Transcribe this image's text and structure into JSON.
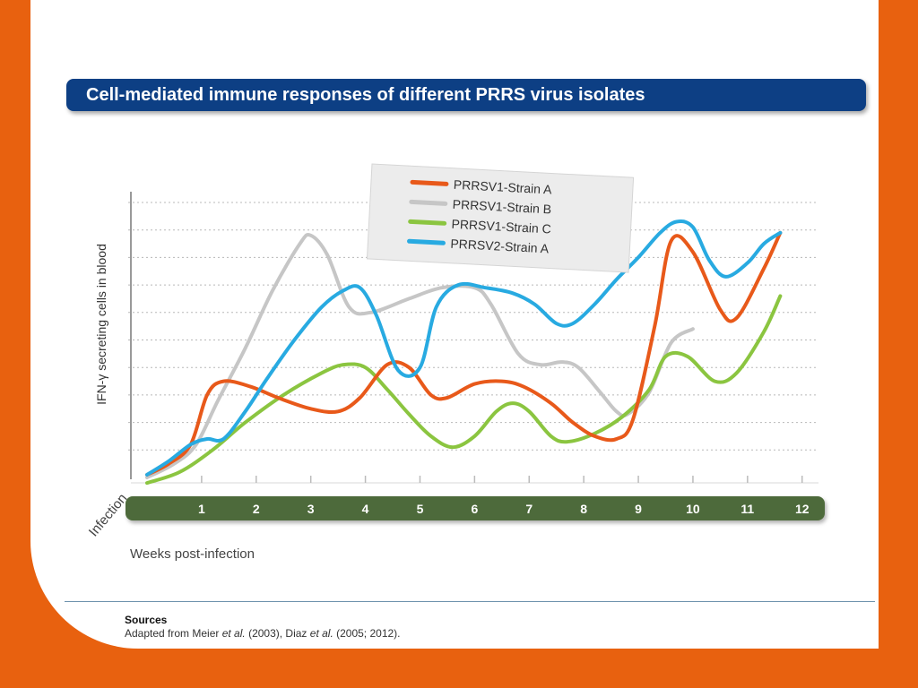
{
  "title": "Cell-mediated immune responses of different PRRS virus isolates",
  "sources": {
    "heading": "Sources",
    "text_parts": [
      "Adapted from Meier ",
      "et al.",
      " (2003), Diaz ",
      "et al.",
      " (2005; 2012)."
    ]
  },
  "colors": {
    "background": "#e8610f",
    "title_bar": "#0d3f84",
    "axis_band": "#4e6b3a"
  },
  "chart_data": {
    "type": "line",
    "ylabel": "IFN-γ secreting cells in blood",
    "xlabel": "Weeks post-infection",
    "x_origin_label": "Infection",
    "x_ticks": [
      1,
      2,
      3,
      4,
      5,
      6,
      7,
      8,
      9,
      10,
      11,
      12
    ],
    "xlim": [
      0,
      12.3
    ],
    "ylim": [
      0,
      10
    ],
    "y_axis_numbered": false,
    "grid": true,
    "legend_position": "top-center",
    "series": [
      {
        "name": "PRRSV1-Strain A",
        "color": "#e8591a",
        "points": [
          [
            0,
            0.1
          ],
          [
            0.4,
            0.5
          ],
          [
            0.8,
            1.2
          ],
          [
            1.1,
            3.0
          ],
          [
            1.4,
            3.5
          ],
          [
            1.9,
            3.3
          ],
          [
            2.4,
            2.9
          ],
          [
            3.0,
            2.5
          ],
          [
            3.5,
            2.4
          ],
          [
            3.9,
            2.9
          ],
          [
            4.4,
            4.1
          ],
          [
            4.8,
            4.0
          ],
          [
            5.2,
            3.0
          ],
          [
            5.5,
            2.9
          ],
          [
            6.0,
            3.4
          ],
          [
            6.5,
            3.5
          ],
          [
            6.9,
            3.3
          ],
          [
            7.4,
            2.7
          ],
          [
            7.8,
            2.0
          ],
          [
            8.2,
            1.5
          ],
          [
            8.6,
            1.4
          ],
          [
            8.9,
            2.1
          ],
          [
            9.3,
            5.5
          ],
          [
            9.6,
            8.6
          ],
          [
            10.0,
            8.2
          ],
          [
            10.5,
            6.1
          ],
          [
            10.8,
            5.8
          ],
          [
            11.3,
            7.6
          ],
          [
            11.6,
            8.9
          ]
        ]
      },
      {
        "name": "PRRSV1-Strain B",
        "color": "#c6c6c6",
        "points": [
          [
            0,
            0
          ],
          [
            0.5,
            0.5
          ],
          [
            0.9,
            1.2
          ],
          [
            1.3,
            2.8
          ],
          [
            1.8,
            4.7
          ],
          [
            2.3,
            6.8
          ],
          [
            2.8,
            8.5
          ],
          [
            3.0,
            8.8
          ],
          [
            3.3,
            8.1
          ],
          [
            3.7,
            6.2
          ],
          [
            4.1,
            6.0
          ],
          [
            4.8,
            6.5
          ],
          [
            5.4,
            6.9
          ],
          [
            6.0,
            6.9
          ],
          [
            6.3,
            6.3
          ],
          [
            6.8,
            4.5
          ],
          [
            7.2,
            4.1
          ],
          [
            7.6,
            4.2
          ],
          [
            7.9,
            4.0
          ],
          [
            8.3,
            3.1
          ],
          [
            8.6,
            2.4
          ],
          [
            8.8,
            2.3
          ],
          [
            9.2,
            3.1
          ],
          [
            9.6,
            4.9
          ],
          [
            10.0,
            5.4
          ]
        ]
      },
      {
        "name": "PRRSV1-Strain C",
        "color": "#8bc540",
        "points": [
          [
            0,
            -0.2
          ],
          [
            0.6,
            0.2
          ],
          [
            1.2,
            1.0
          ],
          [
            1.8,
            2.0
          ],
          [
            2.5,
            3.0
          ],
          [
            3.2,
            3.8
          ],
          [
            3.6,
            4.1
          ],
          [
            4.0,
            4.0
          ],
          [
            4.4,
            3.2
          ],
          [
            4.8,
            2.3
          ],
          [
            5.2,
            1.5
          ],
          [
            5.6,
            1.1
          ],
          [
            6.0,
            1.5
          ],
          [
            6.4,
            2.4
          ],
          [
            6.7,
            2.7
          ],
          [
            7.0,
            2.4
          ],
          [
            7.4,
            1.5
          ],
          [
            7.7,
            1.3
          ],
          [
            8.2,
            1.6
          ],
          [
            8.7,
            2.2
          ],
          [
            9.2,
            3.2
          ],
          [
            9.5,
            4.4
          ],
          [
            9.9,
            4.4
          ],
          [
            10.4,
            3.5
          ],
          [
            10.8,
            3.8
          ],
          [
            11.3,
            5.3
          ],
          [
            11.6,
            6.6
          ]
        ]
      },
      {
        "name": "PRRSV2-Strain A",
        "color": "#28aae1",
        "points": [
          [
            0,
            0.1
          ],
          [
            0.4,
            0.6
          ],
          [
            0.8,
            1.2
          ],
          [
            1.1,
            1.4
          ],
          [
            1.4,
            1.4
          ],
          [
            1.8,
            2.4
          ],
          [
            2.2,
            3.6
          ],
          [
            2.7,
            5.0
          ],
          [
            3.2,
            6.2
          ],
          [
            3.6,
            6.8
          ],
          [
            3.9,
            6.9
          ],
          [
            4.2,
            5.9
          ],
          [
            4.6,
            3.9
          ],
          [
            5.0,
            4.0
          ],
          [
            5.3,
            6.2
          ],
          [
            5.7,
            7.0
          ],
          [
            6.2,
            6.9
          ],
          [
            6.7,
            6.7
          ],
          [
            7.1,
            6.3
          ],
          [
            7.5,
            5.6
          ],
          [
            7.8,
            5.6
          ],
          [
            8.2,
            6.3
          ],
          [
            8.6,
            7.2
          ],
          [
            9.0,
            8.0
          ],
          [
            9.4,
            8.9
          ],
          [
            9.7,
            9.3
          ],
          [
            10.0,
            9.1
          ],
          [
            10.3,
            7.9
          ],
          [
            10.6,
            7.3
          ],
          [
            11.0,
            7.8
          ],
          [
            11.3,
            8.5
          ],
          [
            11.6,
            8.9
          ]
        ]
      }
    ]
  }
}
